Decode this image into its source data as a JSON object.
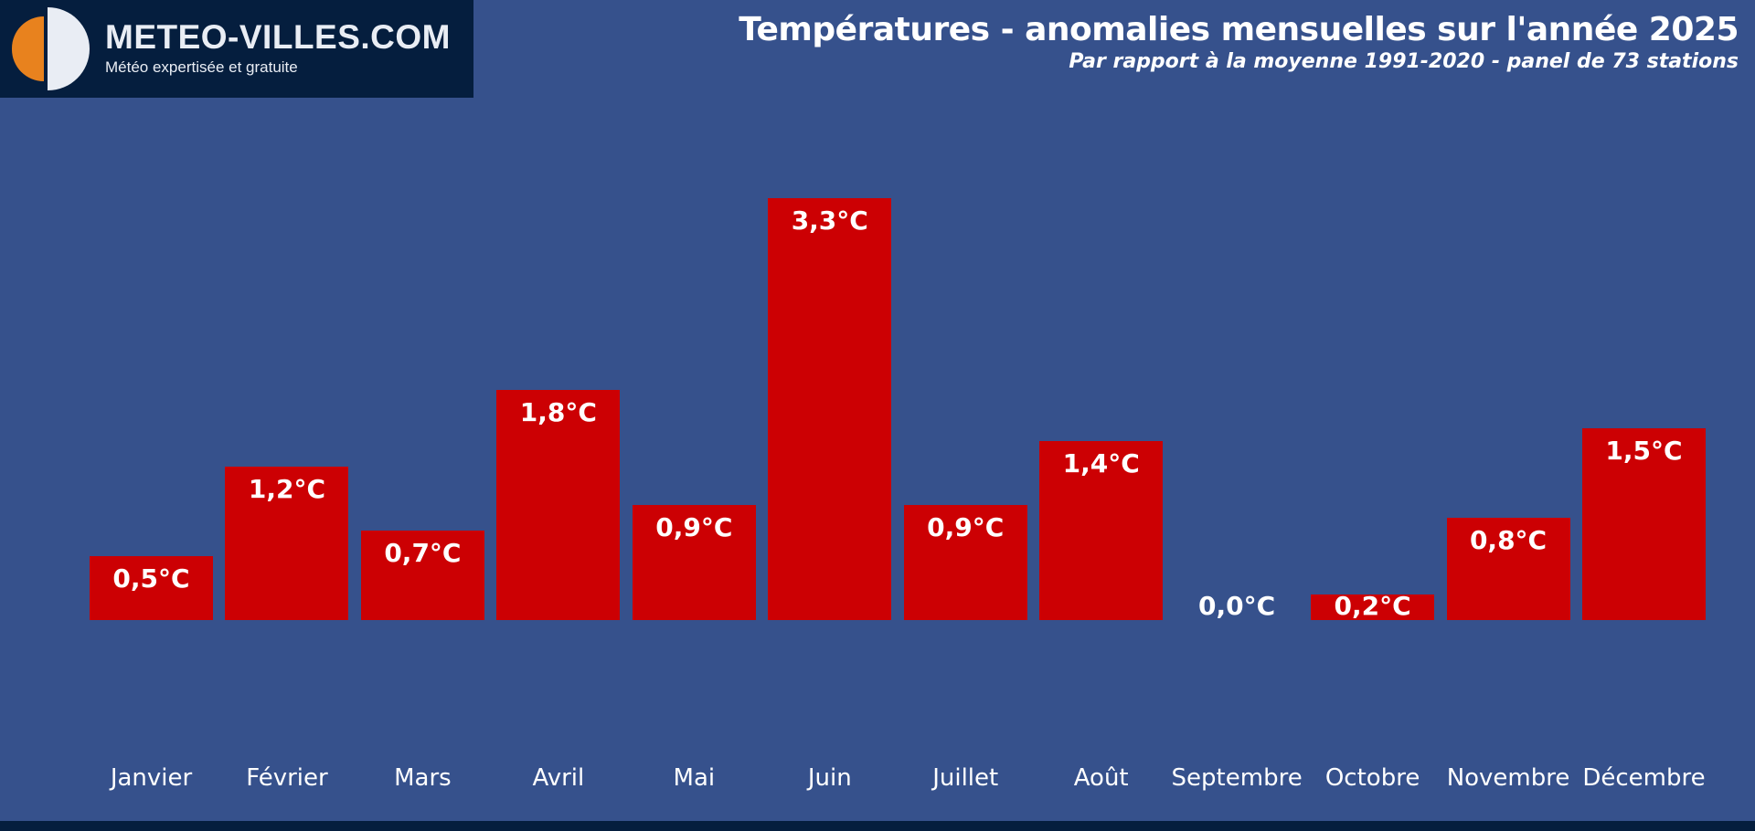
{
  "brand": {
    "name": "METEO-VILLES.COM",
    "tagline": "Météo expertisée et gratuite"
  },
  "header": {
    "title": "Températures - anomalies mensuelles sur l'année 2025",
    "subtitle": "Par rapport à la moyenne 1991-2020 - panel de 73 stations"
  },
  "colors": {
    "background": "#36518C",
    "bar": "#CC0003",
    "navy": "#051E3E",
    "logo_orange": "#E8821E",
    "logo_white": "#E9EDF4",
    "text": "#FFFFFF"
  },
  "chart_data": {
    "type": "bar",
    "categories": [
      "Janvier",
      "Février",
      "Mars",
      "Avril",
      "Mai",
      "Juin",
      "Juillet",
      "Août",
      "Septembre",
      "Octobre",
      "Novembre",
      "Décembre"
    ],
    "values": [
      0.5,
      1.2,
      0.7,
      1.8,
      0.9,
      3.3,
      0.9,
      1.4,
      0.0,
      0.2,
      0.8,
      1.5
    ],
    "value_labels": [
      "0,5°C",
      "1,2°C",
      "0,7°C",
      "1,8°C",
      "0,9°C",
      "3,3°C",
      "0,9°C",
      "1,4°C",
      "0,0°C",
      "0,2°C",
      "0,8°C",
      "1,5°C"
    ],
    "unit": "°C",
    "title": "Températures - anomalies mensuelles sur l'année 2025",
    "subtitle": "Par rapport à la moyenne 1991-2020 - panel de 73 stations",
    "xlabel": "",
    "ylabel": "",
    "ylim": [
      0,
      3.5
    ],
    "grid": false,
    "legend": false,
    "bar_color": "#CC0003",
    "label_position": "inside-top"
  }
}
